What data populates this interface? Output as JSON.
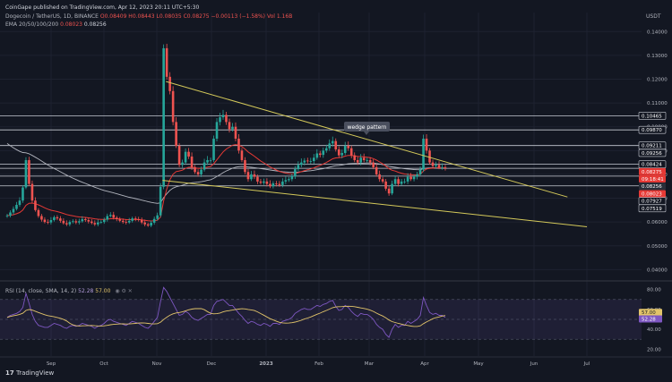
{
  "published": "CoinGape published on TradingView.com, Apr 12, 2023 20:11 UTC+5:30",
  "symbol_line": {
    "name": "Dogecoin / TetherUS, 1D, BINANCE",
    "ohlc": "O0.08409 H0.08443 L0.08035 C0.08275 −0.00113 (−1.58%)",
    "vol": "Vol 1.16B"
  },
  "ema_line": {
    "label": "EMA 20/50/100/200",
    "v1": "0.08023",
    "v2": "0.08256"
  },
  "currency": "USDT",
  "annotation": "wedge pattern",
  "rsi_header": {
    "label": "RSI (14, close, SMA, 14, 2)",
    "v1": "52.28",
    "v2": "57.00"
  },
  "tv_brand": "TradingView",
  "colors": {
    "bg": "#131722",
    "up": "#26a69a",
    "down": "#ef5350",
    "ema": "#e53935",
    "ema200": "#b2b5be",
    "trend": "#d4c95a",
    "rsi": "#7e57c2",
    "rsi_ma": "#e2c46a"
  },
  "chart_data": {
    "type": "candlestick",
    "y_axis": {
      "ticks": [
        "0.14000",
        "0.13000",
        "0.12000",
        "0.11000",
        "0.10000",
        "0.09000",
        "0.08000",
        "0.07000",
        "0.06000",
        "0.05000",
        "0.04000"
      ],
      "range": [
        0.036,
        0.148
      ]
    },
    "x_axis": {
      "ticks": [
        "Sep",
        "Oct",
        "Nov",
        "Dec",
        "2023",
        "Feb",
        "Mar",
        "Apr",
        "May",
        "Jun",
        "Jul"
      ]
    },
    "horizontal_levels": [
      0.10465,
      0.0987,
      0.09211,
      0.08424,
      0.08256,
      0.07927,
      0.07519
    ],
    "price_labels": [
      {
        "text": "0.10465",
        "value": 0.10465,
        "style": "outline"
      },
      {
        "text": "0.09870",
        "value": 0.0987,
        "style": "outline"
      },
      {
        "text": "0.09211",
        "value": 0.09211,
        "style": "outline"
      },
      {
        "text": "0.09256",
        "value": 0.09256,
        "style": "outline"
      },
      {
        "text": "0.08424",
        "value": 0.08424,
        "style": "outline"
      },
      {
        "text": "0.08275",
        "value": 0.08275,
        "style": "red"
      },
      {
        "text": "09:18:41",
        "value": 0.0818,
        "style": "red"
      },
      {
        "text": "0.08256",
        "value": 0.08256,
        "style": "dark"
      },
      {
        "text": "0.08023",
        "value": 0.08023,
        "style": "red"
      },
      {
        "text": "0.07927",
        "value": 0.07927,
        "style": "outline"
      },
      {
        "text": "0.07519",
        "value": 0.07519,
        "style": "outline"
      }
    ],
    "trendlines": [
      {
        "name": "upper",
        "from": [
          "2022-11-05",
          0.119
        ],
        "to": [
          "2023-06-20",
          0.0705
        ]
      },
      {
        "name": "lower",
        "from": [
          "2022-11-03",
          0.0775
        ],
        "to": [
          "2023-07-01",
          0.058
        ]
      }
    ],
    "close_series": [
      0.0627,
      0.064,
      0.0655,
      0.0672,
      0.069,
      0.0745,
      0.086,
      0.076,
      0.069,
      0.065,
      0.0625,
      0.061,
      0.06,
      0.0598,
      0.0608,
      0.062,
      0.0615,
      0.0605,
      0.0595,
      0.059,
      0.06,
      0.0603,
      0.0598,
      0.0603,
      0.0612,
      0.0608,
      0.0602,
      0.0596,
      0.059,
      0.0598,
      0.06,
      0.061,
      0.0625,
      0.063,
      0.0618,
      0.0612,
      0.0605,
      0.06,
      0.0598,
      0.0605,
      0.0615,
      0.0612,
      0.0608,
      0.0598,
      0.059,
      0.0585,
      0.0597,
      0.0613,
      0.0628,
      0.0748,
      0.133,
      0.121,
      0.115,
      0.102,
      0.092,
      0.084,
      0.085,
      0.0895,
      0.0875,
      0.083,
      0.081,
      0.08,
      0.082,
      0.085,
      0.086,
      0.086,
      0.095,
      0.102,
      0.104,
      0.105,
      0.102,
      0.099,
      0.1,
      0.095,
      0.09,
      0.086,
      0.081,
      0.078,
      0.08,
      0.079,
      0.077,
      0.0765,
      0.077,
      0.076,
      0.075,
      0.0762,
      0.076,
      0.0755,
      0.077,
      0.0776,
      0.078,
      0.0792,
      0.0822,
      0.084,
      0.085,
      0.0858,
      0.0855,
      0.0856,
      0.087,
      0.0888,
      0.0882,
      0.09,
      0.091,
      0.093,
      0.094,
      0.0905,
      0.088,
      0.089,
      0.092,
      0.091,
      0.088,
      0.086,
      0.085,
      0.087,
      0.086,
      0.086,
      0.085,
      0.083,
      0.08,
      0.078,
      0.077,
      0.074,
      0.072,
      0.076,
      0.078,
      0.076,
      0.077,
      0.077,
      0.079,
      0.078,
      0.079,
      0.08,
      0.082,
      0.095,
      0.09,
      0.085,
      0.0835,
      0.084,
      0.083,
      0.083,
      0.0828
    ],
    "rsi_axis": {
      "ticks": [
        "80.00",
        "60.00",
        "40.00",
        "20.00"
      ],
      "range": [
        15,
        85
      ],
      "band": [
        30,
        70
      ]
    },
    "rsi_series": [
      52,
      54,
      55,
      56,
      58,
      62,
      76,
      66,
      55,
      48,
      44,
      43,
      42,
      42,
      44,
      46,
      45,
      44,
      42,
      41,
      43,
      44,
      43,
      44,
      46,
      45,
      44,
      43,
      41,
      43,
      44,
      46,
      49,
      50,
      48,
      47,
      46,
      45,
      44,
      46,
      48,
      47,
      46,
      44,
      42,
      41,
      44,
      48,
      52,
      68,
      82,
      78,
      72,
      66,
      60,
      54,
      55,
      58,
      56,
      52,
      50,
      49,
      51,
      53,
      55,
      55,
      64,
      68,
      69,
      70,
      67,
      64,
      64,
      60,
      56,
      53,
      49,
      46,
      48,
      47,
      45,
      44,
      46,
      45,
      43,
      46,
      46,
      45,
      48,
      49,
      50,
      52,
      56,
      58,
      60,
      61,
      60,
      60,
      62,
      64,
      63,
      65,
      66,
      68,
      69,
      63,
      59,
      60,
      64,
      62,
      58,
      55,
      53,
      56,
      55,
      55,
      53,
      50,
      45,
      42,
      40,
      35,
      32,
      40,
      45,
      42,
      44,
      44,
      48,
      46,
      48,
      50,
      54,
      72,
      64,
      57,
      55,
      56,
      54,
      54,
      52
    ]
  }
}
